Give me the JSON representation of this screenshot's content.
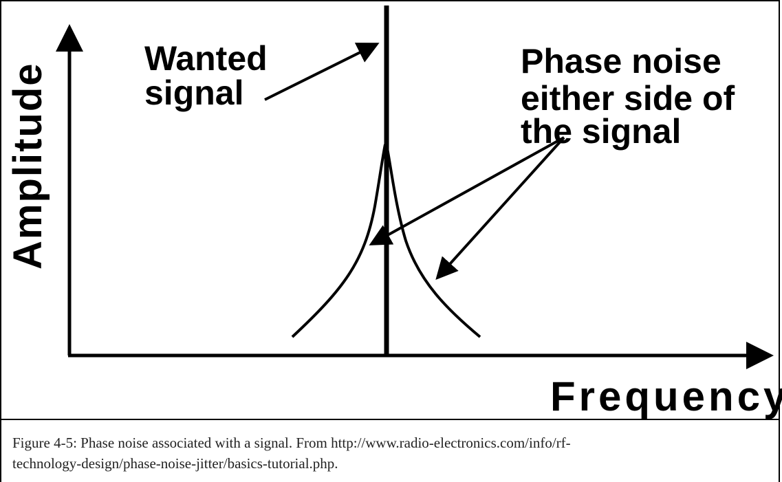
{
  "diagram": {
    "y_axis_label": "Amplitude",
    "x_axis_label": "Frequency",
    "wanted_label": [
      "Wanted",
      "signal"
    ],
    "noise_label": [
      "Phase noise",
      "either side of",
      "the signal"
    ]
  },
  "caption": [
    "Figure 4-5: Phase noise associated with a signal. From http://www.radio-electronics.com/info/rf-",
    "technology-design/phase-noise-jitter/basics-tutorial.php."
  ]
}
